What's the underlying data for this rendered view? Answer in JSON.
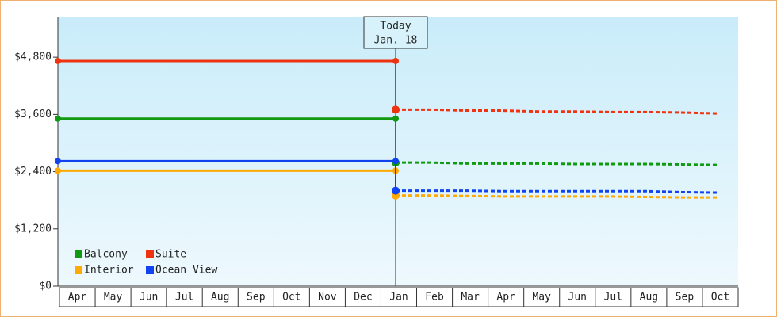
{
  "chart_data": {
    "type": "line",
    "categories": [
      "Apr",
      "May",
      "Jun",
      "Jul",
      "Aug",
      "Sep",
      "Oct",
      "Nov",
      "Dec",
      "Jan",
      "Feb",
      "Mar",
      "Apr",
      "May",
      "Jun",
      "Jul",
      "Aug",
      "Sep",
      "Oct"
    ],
    "ylim": [
      0,
      5650
    ],
    "yticks": [
      {
        "value": 0,
        "label": "$0"
      },
      {
        "value": 1200,
        "label": "$1,200"
      },
      {
        "value": 2400,
        "label": "$2,400"
      },
      {
        "value": 3600,
        "label": "$3,600"
      },
      {
        "value": 4800,
        "label": "$4,800"
      }
    ],
    "annotation": {
      "lines": [
        "Today",
        "Jan. 18"
      ],
      "category_index": 9
    },
    "series": [
      {
        "name": "Balcony",
        "color": "#119911",
        "values": [
          3510,
          3510,
          3510,
          3510,
          3510,
          3510,
          3510,
          3510,
          3510,
          3510,
          null,
          null,
          null,
          null,
          null,
          null,
          null,
          null,
          null
        ],
        "forecast": [
          null,
          null,
          null,
          null,
          null,
          null,
          null,
          null,
          null,
          2590,
          2590,
          2570,
          2570,
          2570,
          2560,
          2560,
          2560,
          2550,
          2540
        ]
      },
      {
        "name": "Suite",
        "color": "#ee3311",
        "values": [
          4720,
          4720,
          4720,
          4720,
          4720,
          4720,
          4720,
          4720,
          4720,
          4720,
          null,
          null,
          null,
          null,
          null,
          null,
          null,
          null,
          null
        ],
        "forecast": [
          null,
          null,
          null,
          null,
          null,
          null,
          null,
          null,
          null,
          3700,
          3700,
          3680,
          3680,
          3660,
          3660,
          3650,
          3650,
          3640,
          3620
        ]
      },
      {
        "name": "Interior",
        "color": "#ffaa00",
        "values": [
          2420,
          2420,
          2420,
          2420,
          2420,
          2420,
          2420,
          2420,
          2420,
          2420,
          null,
          null,
          null,
          null,
          null,
          null,
          null,
          null,
          null
        ],
        "forecast": [
          null,
          null,
          null,
          null,
          null,
          null,
          null,
          null,
          null,
          1900,
          1900,
          1890,
          1880,
          1880,
          1880,
          1880,
          1870,
          1860,
          1860
        ]
      },
      {
        "name": "Ocean View",
        "color": "#1144ee",
        "values": [
          2620,
          2620,
          2620,
          2620,
          2620,
          2620,
          2620,
          2620,
          2620,
          2620,
          null,
          null,
          null,
          null,
          null,
          null,
          null,
          null,
          null
        ],
        "forecast": [
          null,
          null,
          null,
          null,
          null,
          null,
          null,
          null,
          null,
          2000,
          2000,
          2000,
          1990,
          1990,
          1990,
          1990,
          1990,
          1970,
          1960
        ]
      }
    ]
  }
}
